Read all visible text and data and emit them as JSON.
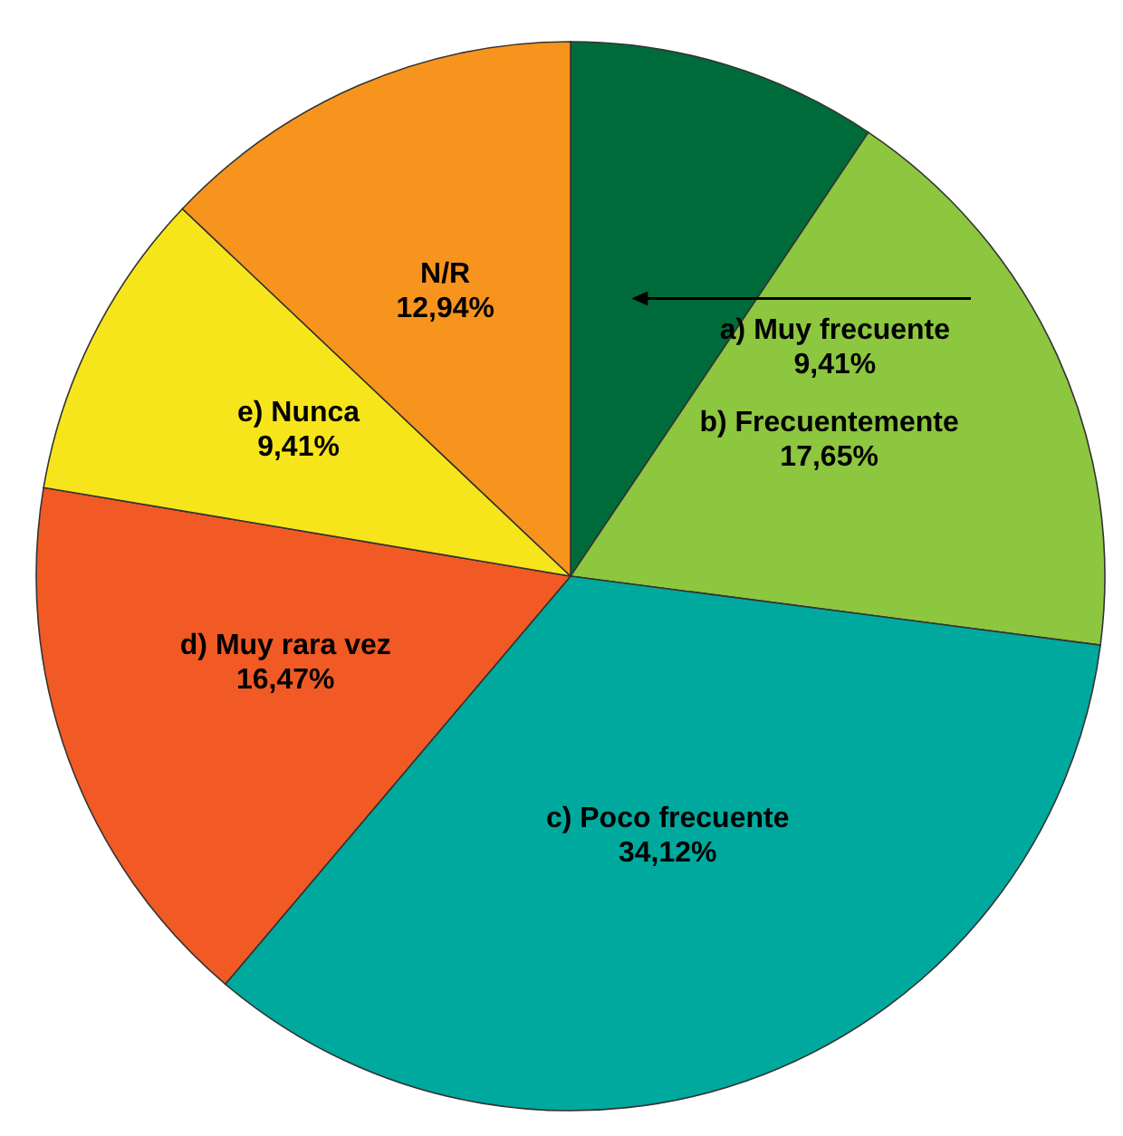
{
  "chart_data": {
    "type": "pie",
    "categories": [
      "a) Muy frecuente",
      "b) Frecuentemente",
      "c) Poco frecuente",
      "d) Muy rara vez",
      "e) Nunca",
      "N/R"
    ],
    "values": [
      9.41,
      17.65,
      34.12,
      16.47,
      9.41,
      12.94
    ],
    "value_labels": [
      "9,41%",
      "17,65%",
      "34,12%",
      "16,47%",
      "9,41%",
      "12,94%"
    ],
    "colors": [
      "#006b3a",
      "#8dc63f",
      "#00a99d",
      "#f15a24",
      "#f7e51c",
      "#f7941d"
    ],
    "legend": false
  }
}
